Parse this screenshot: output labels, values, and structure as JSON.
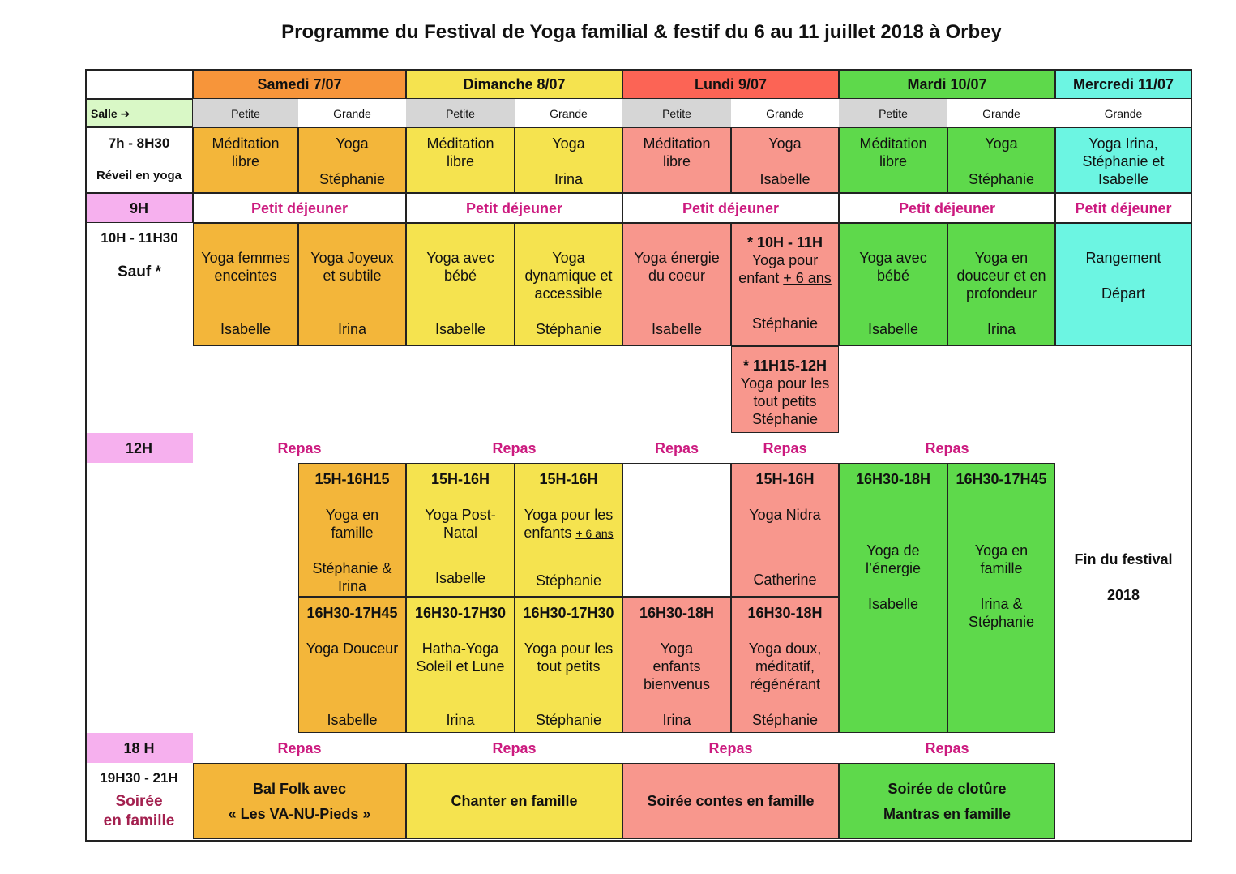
{
  "title": "Programme du Festival de Yoga familial & festif du 6 au 11 juillet 2018 à Orbey",
  "days": {
    "samedi": "Samedi 7/07",
    "dimanche": "Dimanche 8/07",
    "lundi": "Lundi 9/07",
    "mardi": "Mardi 10/07",
    "mercredi": "Mercredi 11/07"
  },
  "salle_label": "Salle ➔",
  "rooms": {
    "petite": "Petite",
    "grande": "Grande"
  },
  "times": {
    "t7": "7h - 8H30",
    "t7_sub": "Réveil en yoga",
    "t9": "9H",
    "t10": "10H - 11H30",
    "t10_sub": "Sauf *",
    "t12": "12H",
    "t18": "18 H",
    "t19": "19H30 - 21H",
    "t19_sub1": "Soirée",
    "t19_sub2": "en famille"
  },
  "labels": {
    "petit_dej": "Petit déjeuner",
    "repas": "Repas"
  },
  "reveil": {
    "meditation1": "Méditation",
    "meditation2": "libre",
    "yoga": "Yoga",
    "sat_teacher": "Stéphanie",
    "dim_teacher": "Irina",
    "lun_teacher": "Isabelle",
    "mar_teacher": "Stéphanie",
    "mer_line1": "Yoga Irina,",
    "mer_line2": "Stéphanie et",
    "mer_line3": "Isabelle"
  },
  "morning": {
    "sat_p1": "Yoga femmes",
    "sat_p2": "enceintes",
    "sat_p_teacher": "Isabelle",
    "sat_g1": "Yoga Joyeux",
    "sat_g2": "et subtile",
    "sat_g_teacher": "Irina",
    "dim_p1": "Yoga avec",
    "dim_p2": "bébé",
    "dim_p_teacher": "Isabelle",
    "dim_g1": "Yoga",
    "dim_g2": "dynamique et",
    "dim_g3": "accessible",
    "dim_g_teacher": "Stéphanie",
    "lun_p1": "Yoga énergie",
    "lun_p2": "du coeur",
    "lun_p_teacher": "Isabelle",
    "lun_g_time": "* 10H - 11H",
    "lun_g1": "Yoga pour",
    "lun_g2a": "enfant ",
    "lun_g2b": "+ 6 ans",
    "lun_g_teacher": "Stéphanie",
    "mar_p1": "Yoga avec",
    "mar_p2": "bébé",
    "mar_p_teacher": "Isabelle",
    "mar_g1": "Yoga en",
    "mar_g2": "douceur et en",
    "mar_g3": "profondeur",
    "mar_g_teacher": "Irina",
    "mer1": "Rangement",
    "mer2": "Départ"
  },
  "late_morning": {
    "time": "* 11H15-12H",
    "line1": "Yoga pour les",
    "line2": "tout petits",
    "teacher": "Stéphanie"
  },
  "afternoon1": {
    "sat_time": "15H-16H15",
    "sat1": "Yoga en",
    "sat2": "famille",
    "sat_t1": "Stéphanie &",
    "sat_t2": "Irina",
    "dimp_time": "15H-16H",
    "dimp1": "Yoga Post-",
    "dimp2": "Natal",
    "dimp_teacher": "Isabelle",
    "dimg_time": "15H-16H",
    "dimg1": "Yoga pour les",
    "dimg2a": "enfants ",
    "dimg2b": "+ 6 ans",
    "dimg_teacher": "Stéphanie",
    "lung_time": "15H-16H",
    "lung1": "Yoga Nidra",
    "lung_teacher": "Catherine",
    "marp_time": "16H30-18H",
    "marp1": "Yoga de",
    "marp2": "l’énergie",
    "marp_teacher": "Isabelle",
    "marg_time": "16H30-17H45",
    "marg1": "Yoga en",
    "marg2": "famille",
    "marg_t1": "Irina &",
    "marg_t2": "Stéphanie",
    "fin1": "Fin du festival",
    "fin2": "2018"
  },
  "afternoon2": {
    "sat_time": "16H30-17H45",
    "sat1": "Yoga Douceur",
    "sat_teacher": "Isabelle",
    "dimp_time": "16H30-17H30",
    "dimp1": "Hatha-Yoga",
    "dimp2": "Soleil et Lune",
    "dimp_teacher": "Irina",
    "dimg_time": "16H30-17H30",
    "dimg1": "Yoga pour les",
    "dimg2": "tout petits",
    "dimg_teacher": "Stéphanie",
    "lunp_time": "16H30-18H",
    "lunp1": "Yoga",
    "lunp2": "enfants",
    "lunp3": "bienvenus",
    "lunp_teacher": "Irina",
    "lung_time": "16H30-18H",
    "lung1": "Yoga doux,",
    "lung2": "méditatif,",
    "lung3": "régénérant",
    "lung_teacher": "Stéphanie"
  },
  "evening": {
    "sat1": "Bal Folk avec",
    "sat2": "« Les VA-NU-Pieds »",
    "dim": "Chanter en famille",
    "lun": "Soirée contes en famille",
    "mar1": "Soirée de clotûre",
    "mar2": "Mantras en famille"
  },
  "colors": {
    "samedi": "#f3b63a",
    "dimanche": "#f5e34f",
    "lundi": "#f8978d",
    "mardi": "#5ed94b",
    "mercredi": "#6cf5e2",
    "time_highlight": "#f6b0ee",
    "meal_text": "#cc1a7f"
  }
}
